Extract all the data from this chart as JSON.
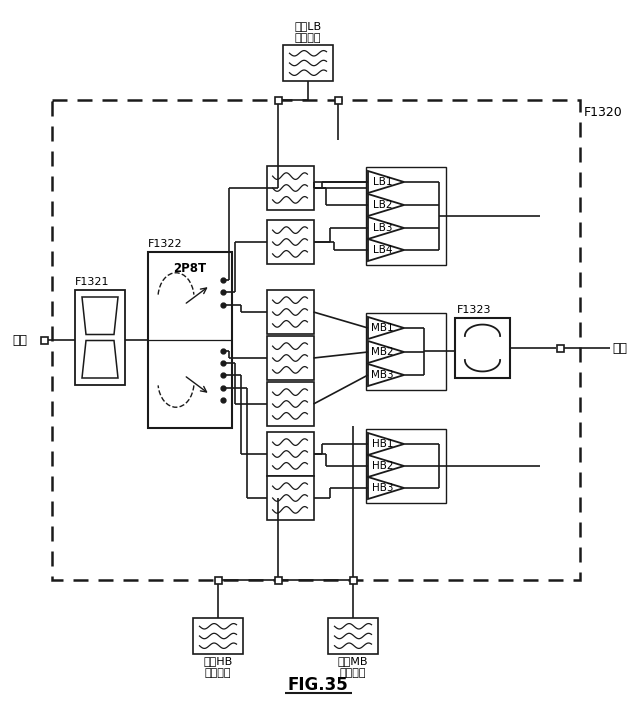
{
  "bg": "#ffffff",
  "lc": "#1a1a1a",
  "title": "FIG.35",
  "label_input": "入力",
  "label_output": "出力",
  "label_F1320": "F1320",
  "label_F1321": "F1321",
  "label_F1322": "F1322",
  "label_F1323": "F1323",
  "label_switch": "2P8T",
  "label_ext_lb": "外部LB\nフィルタ",
  "label_ext_hb": "外部HB\nフィルタ",
  "label_ext_mb": "外部MB\nフィルタ",
  "labels_lb": [
    "LB1",
    "LB2",
    "LB3",
    "LB4"
  ],
  "labels_mb": [
    "MB1",
    "MB2",
    "MB3"
  ],
  "labels_hb": [
    "HB1",
    "HB2",
    "HB3"
  ]
}
